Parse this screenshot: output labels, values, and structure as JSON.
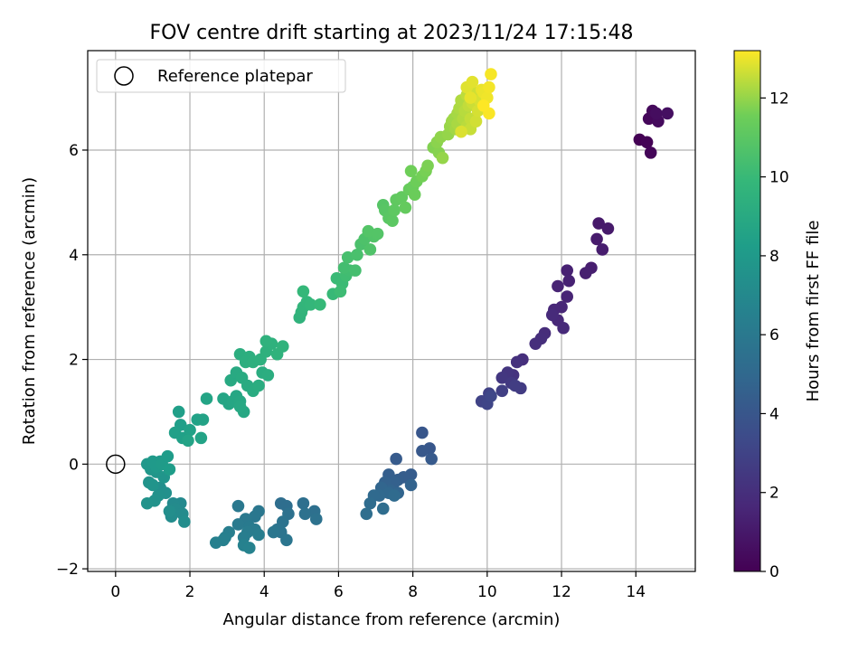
{
  "chart_data": {
    "type": "scatter",
    "title": "FOV centre drift starting at 2023/11/24 17:15:48",
    "xlabel": "Angular distance from reference (arcmin)",
    "ylabel": "Rotation from reference (arcmin)",
    "xlim": [
      -0.75,
      15.6
    ],
    "ylim": [
      -2.05,
      7.9
    ],
    "xticks": [
      0,
      2,
      4,
      6,
      8,
      10,
      12,
      14
    ],
    "yticks": [
      -2,
      0,
      2,
      4,
      6
    ],
    "grid": true,
    "legend": {
      "position": "top-left",
      "entries": [
        {
          "label": "Reference platepar",
          "marker": "open-circle"
        }
      ]
    },
    "reference_point": {
      "x": 0,
      "y": 0
    },
    "colorbar": {
      "label": "Hours from first FF file",
      "range": [
        0,
        13.2
      ],
      "ticks": [
        0,
        2,
        4,
        6,
        8,
        10,
        12
      ],
      "colormap": "viridis"
    },
    "point_groups": [
      {
        "hours": [
          0.0,
          0.6
        ],
        "points": [
          [
            14.1,
            6.2
          ],
          [
            14.3,
            6.15
          ],
          [
            14.4,
            5.95
          ],
          [
            14.35,
            6.6
          ],
          [
            14.45,
            6.75
          ],
          [
            14.6,
            6.55
          ],
          [
            14.55,
            6.7
          ],
          [
            14.85,
            6.7
          ]
        ]
      },
      {
        "hours": [
          1.0,
          2.0
        ],
        "points": [
          [
            13.0,
            4.6
          ],
          [
            13.25,
            4.5
          ],
          [
            12.95,
            4.3
          ],
          [
            13.1,
            4.1
          ],
          [
            12.8,
            3.75
          ],
          [
            12.65,
            3.65
          ],
          [
            12.15,
            3.7
          ],
          [
            12.2,
            3.5
          ],
          [
            11.9,
            3.4
          ],
          [
            12.15,
            3.2
          ],
          [
            12.0,
            3.0
          ],
          [
            11.8,
            2.95
          ],
          [
            11.9,
            2.75
          ],
          [
            12.05,
            2.6
          ],
          [
            11.75,
            2.85
          ],
          [
            11.55,
            2.5
          ],
          [
            11.45,
            2.4
          ],
          [
            11.3,
            2.3
          ]
        ]
      },
      {
        "hours": [
          2.0,
          3.2
        ],
        "points": [
          [
            10.95,
            2.0
          ],
          [
            10.8,
            1.95
          ],
          [
            10.7,
            1.7
          ],
          [
            10.55,
            1.75
          ],
          [
            10.4,
            1.65
          ],
          [
            10.65,
            1.55
          ],
          [
            10.9,
            1.45
          ],
          [
            10.75,
            1.5
          ],
          [
            10.4,
            1.4
          ],
          [
            10.05,
            1.35
          ],
          [
            9.85,
            1.2
          ],
          [
            10.0,
            1.15
          ],
          [
            10.1,
            1.3
          ]
        ]
      },
      {
        "hours": [
          4.0,
          5.3
        ],
        "points": [
          [
            8.25,
            0.6
          ],
          [
            8.45,
            0.3
          ],
          [
            8.25,
            0.25
          ],
          [
            8.5,
            0.1
          ],
          [
            7.55,
            0.1
          ],
          [
            7.95,
            -0.2
          ],
          [
            7.75,
            -0.25
          ],
          [
            7.6,
            -0.3
          ],
          [
            7.35,
            -0.2
          ],
          [
            7.5,
            -0.35
          ],
          [
            7.25,
            -0.35
          ],
          [
            7.95,
            -0.4
          ],
          [
            7.4,
            -0.5
          ],
          [
            7.6,
            -0.55
          ],
          [
            7.15,
            -0.45
          ],
          [
            7.35,
            -0.55
          ],
          [
            7.1,
            -0.6
          ],
          [
            6.95,
            -0.6
          ],
          [
            7.5,
            -0.6
          ],
          [
            6.85,
            -0.75
          ],
          [
            7.2,
            -0.85
          ],
          [
            6.75,
            -0.95
          ]
        ]
      },
      {
        "hours": [
          5.3,
          6.6
        ],
        "points": [
          [
            4.45,
            -0.75
          ],
          [
            4.6,
            -0.8
          ],
          [
            5.05,
            -0.75
          ],
          [
            5.35,
            -0.9
          ],
          [
            4.65,
            -0.95
          ],
          [
            5.1,
            -0.95
          ],
          [
            5.4,
            -1.05
          ],
          [
            4.5,
            -1.1
          ],
          [
            4.35,
            -1.25
          ],
          [
            4.45,
            -1.3
          ],
          [
            4.6,
            -1.45
          ],
          [
            4.25,
            -1.3
          ],
          [
            3.85,
            -0.9
          ],
          [
            3.75,
            -1.0
          ],
          [
            3.3,
            -0.8
          ],
          [
            3.5,
            -1.05
          ],
          [
            3.3,
            -1.15
          ],
          [
            3.6,
            -1.2
          ],
          [
            3.75,
            -1.25
          ],
          [
            3.55,
            -1.3
          ],
          [
            3.85,
            -1.35
          ],
          [
            3.45,
            -1.4
          ],
          [
            3.05,
            -1.3
          ],
          [
            2.95,
            -1.4
          ],
          [
            2.9,
            -1.45
          ],
          [
            2.7,
            -1.5
          ],
          [
            3.45,
            -1.55
          ],
          [
            3.6,
            -1.6
          ]
        ]
      },
      {
        "hours": [
          7.0,
          8.2
        ],
        "points": [
          [
            1.75,
            -0.75
          ],
          [
            1.55,
            -0.75
          ],
          [
            1.6,
            -0.85
          ],
          [
            1.8,
            -0.95
          ],
          [
            1.5,
            -1.0
          ],
          [
            1.85,
            -1.1
          ],
          [
            1.45,
            -0.9
          ],
          [
            1.2,
            -0.45
          ],
          [
            1.35,
            -0.55
          ],
          [
            1.15,
            -0.6
          ],
          [
            1.05,
            -0.7
          ],
          [
            0.85,
            -0.75
          ],
          [
            0.9,
            -0.35
          ],
          [
            1.0,
            -0.4
          ],
          [
            1.3,
            -0.25
          ],
          [
            1.1,
            -0.15
          ],
          [
            0.95,
            -0.1
          ],
          [
            0.85,
            0.0
          ],
          [
            1.2,
            0.05
          ],
          [
            1.0,
            0.05
          ],
          [
            1.1,
            -0.05
          ],
          [
            1.25,
            0.0
          ],
          [
            1.4,
            0.15
          ],
          [
            1.45,
            -0.1
          ]
        ]
      },
      {
        "hours": [
          8.3,
          9.6
        ],
        "points": [
          [
            1.75,
            0.75
          ],
          [
            1.7,
            1.0
          ],
          [
            1.6,
            0.6
          ],
          [
            1.8,
            0.5
          ],
          [
            2.0,
            0.65
          ],
          [
            2.2,
            0.85
          ],
          [
            2.35,
            0.85
          ],
          [
            2.3,
            0.5
          ],
          [
            1.95,
            0.45
          ],
          [
            2.45,
            1.25
          ],
          [
            2.9,
            1.25
          ],
          [
            3.05,
            1.15
          ],
          [
            3.15,
            1.2
          ],
          [
            3.25,
            1.3
          ],
          [
            3.35,
            1.2
          ],
          [
            3.45,
            1.0
          ],
          [
            3.35,
            1.1
          ],
          [
            3.1,
            1.6
          ],
          [
            3.25,
            1.75
          ],
          [
            3.4,
            1.65
          ],
          [
            3.55,
            1.5
          ],
          [
            3.7,
            1.4
          ],
          [
            3.85,
            1.5
          ],
          [
            3.95,
            1.75
          ],
          [
            4.1,
            1.7
          ],
          [
            3.35,
            2.1
          ],
          [
            3.6,
            2.05
          ],
          [
            3.5,
            1.95
          ],
          [
            3.7,
            1.95
          ],
          [
            3.9,
            2.0
          ],
          [
            4.05,
            2.15
          ],
          [
            4.2,
            2.3
          ],
          [
            4.05,
            2.35
          ],
          [
            4.35,
            2.1
          ],
          [
            4.5,
            2.25
          ]
        ]
      },
      {
        "hours": [
          9.6,
          10.8
        ],
        "points": [
          [
            4.95,
            2.8
          ],
          [
            5.0,
            2.9
          ],
          [
            5.05,
            3.0
          ],
          [
            5.15,
            3.1
          ],
          [
            5.25,
            3.05
          ],
          [
            5.05,
            3.3
          ],
          [
            5.5,
            3.05
          ],
          [
            5.85,
            3.25
          ],
          [
            5.95,
            3.55
          ],
          [
            6.1,
            3.45
          ],
          [
            6.05,
            3.3
          ],
          [
            6.2,
            3.6
          ],
          [
            6.3,
            3.7
          ],
          [
            6.15,
            3.75
          ],
          [
            6.45,
            3.7
          ],
          [
            6.25,
            3.95
          ],
          [
            6.5,
            4.0
          ],
          [
            6.6,
            4.2
          ],
          [
            6.7,
            4.3
          ],
          [
            6.85,
            4.1
          ],
          [
            6.95,
            4.35
          ],
          [
            6.8,
            4.45
          ]
        ]
      },
      {
        "hours": [
          10.8,
          12.0
        ],
        "points": [
          [
            7.05,
            4.4
          ],
          [
            7.2,
            4.95
          ],
          [
            7.25,
            4.85
          ],
          [
            7.35,
            4.7
          ],
          [
            7.45,
            4.65
          ],
          [
            7.5,
            4.85
          ],
          [
            7.55,
            5.05
          ],
          [
            7.7,
            5.1
          ],
          [
            7.8,
            4.9
          ],
          [
            7.9,
            5.25
          ],
          [
            8.0,
            5.3
          ],
          [
            8.05,
            5.15
          ],
          [
            8.1,
            5.4
          ],
          [
            7.95,
            5.6
          ],
          [
            8.25,
            5.5
          ],
          [
            8.35,
            5.6
          ],
          [
            8.4,
            5.7
          ],
          [
            8.55,
            6.05
          ],
          [
            8.7,
            5.95
          ],
          [
            8.65,
            6.15
          ],
          [
            8.75,
            6.25
          ],
          [
            8.8,
            5.85
          ]
        ]
      },
      {
        "hours": [
          12.0,
          13.2
        ],
        "points": [
          [
            8.95,
            6.3
          ],
          [
            9.0,
            6.45
          ],
          [
            9.05,
            6.55
          ],
          [
            9.1,
            6.6
          ],
          [
            9.15,
            6.4
          ],
          [
            9.2,
            6.7
          ],
          [
            9.2,
            6.5
          ],
          [
            9.25,
            6.8
          ],
          [
            9.3,
            6.95
          ],
          [
            9.35,
            6.6
          ],
          [
            9.4,
            6.75
          ],
          [
            9.45,
            6.45
          ],
          [
            9.45,
            7.05
          ],
          [
            9.5,
            6.85
          ],
          [
            9.55,
            6.6
          ],
          [
            9.55,
            6.4
          ],
          [
            9.6,
            6.9
          ],
          [
            9.65,
            7.1
          ],
          [
            9.7,
            6.55
          ],
          [
            9.75,
            6.75
          ],
          [
            9.8,
            6.95
          ],
          [
            9.3,
            6.35
          ],
          [
            9.45,
            7.2
          ],
          [
            9.6,
            7.3
          ],
          [
            9.55,
            7.0
          ],
          [
            9.85,
            7.15
          ],
          [
            9.9,
            7.1
          ],
          [
            10.0,
            7.0
          ],
          [
            10.05,
            7.2
          ],
          [
            10.1,
            7.45
          ],
          [
            10.05,
            6.7
          ],
          [
            9.9,
            6.85
          ]
        ]
      }
    ]
  }
}
